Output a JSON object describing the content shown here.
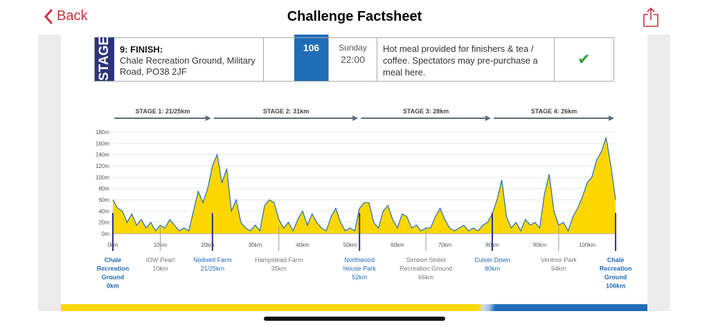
{
  "nav": {
    "back_label": "Back",
    "title": "Challenge Factsheet",
    "share_icon": "share-icon"
  },
  "colors": {
    "accent": "#c9303c",
    "navy": "#2d3479",
    "blue": "#1f6db7",
    "fill": "#ffd700",
    "line": "#1f6db7"
  },
  "stage_row": {
    "stage_label": "STAGE",
    "stop_title": "9: FINISH:",
    "location": "Chale Recreation Ground, Military Road, PO38 2JF",
    "km": "106",
    "day": "Sunday",
    "time": "22:00",
    "description": "Hot meal provided for finishers & tea / coffee. Spectators may pre-purchase a meal here.",
    "available": true
  },
  "chart_data": {
    "type": "area",
    "stages": [
      {
        "label": "STAGE 1: 21/25km",
        "from": 0,
        "to": 21
      },
      {
        "label": "STAGE 2: 31km",
        "from": 21,
        "to": 52
      },
      {
        "label": "STAGE 3: 28km",
        "from": 52,
        "to": 80
      },
      {
        "label": "STAGE 4: 26km",
        "from": 80,
        "to": 106
      }
    ],
    "xlim": [
      0,
      106
    ],
    "ylim": [
      0,
      180
    ],
    "xticks": [
      "0km",
      "10km",
      "20km",
      "30km",
      "40km",
      "50km",
      "60km",
      "70km",
      "80km",
      "90km",
      "100km"
    ],
    "yticks": [
      "0m",
      "20m",
      "40m",
      "60m",
      "80m",
      "100m",
      "120m",
      "140m",
      "160m",
      "180m"
    ],
    "grid": true,
    "elevation_m": [
      60,
      45,
      40,
      20,
      35,
      15,
      25,
      10,
      20,
      5,
      15,
      10,
      25,
      15,
      5,
      10,
      5,
      40,
      75,
      55,
      80,
      120,
      140,
      90,
      115,
      40,
      60,
      20,
      10,
      5,
      15,
      5,
      50,
      60,
      55,
      25,
      10,
      20,
      5,
      25,
      40,
      15,
      35,
      20,
      10,
      5,
      30,
      45,
      20,
      5,
      10,
      5,
      45,
      55,
      55,
      20,
      10,
      40,
      50,
      25,
      10,
      35,
      30,
      10,
      15,
      5,
      10,
      10,
      30,
      45,
      25,
      10,
      5,
      10,
      15,
      5,
      10,
      5,
      15,
      20,
      35,
      60,
      95,
      30,
      10,
      20,
      5,
      25,
      15,
      20,
      10,
      70,
      105,
      40,
      15,
      20,
      5,
      30,
      45,
      65,
      90,
      100,
      130,
      145,
      170,
      120,
      60
    ],
    "waypoints": [
      {
        "name": "Chale Recreation Ground",
        "km_label": "0km",
        "km": 0,
        "major": true
      },
      {
        "name": "IOW Pearl",
        "km_label": "10km",
        "km": 10,
        "major": false
      },
      {
        "name": "Nodwell Farm",
        "km_label": "21/25km",
        "km": 21,
        "major": true
      },
      {
        "name": "Hampstead Farm",
        "km_label": "35km",
        "km": 35,
        "major": false
      },
      {
        "name": "Northwood House Park",
        "km_label": "52km",
        "km": 52,
        "major": true
      },
      {
        "name": "Simeon Street Recreation Ground",
        "km_label": "66km",
        "km": 66,
        "major": false
      },
      {
        "name": "Culver Down",
        "km_label": "80km",
        "km": 80,
        "major": true
      },
      {
        "name": "Ventnor Park",
        "km_label": "94km",
        "km": 94,
        "major": false
      },
      {
        "name": "Chale Recreation Ground",
        "km_label": "106km",
        "km": 106,
        "major": true
      }
    ]
  }
}
